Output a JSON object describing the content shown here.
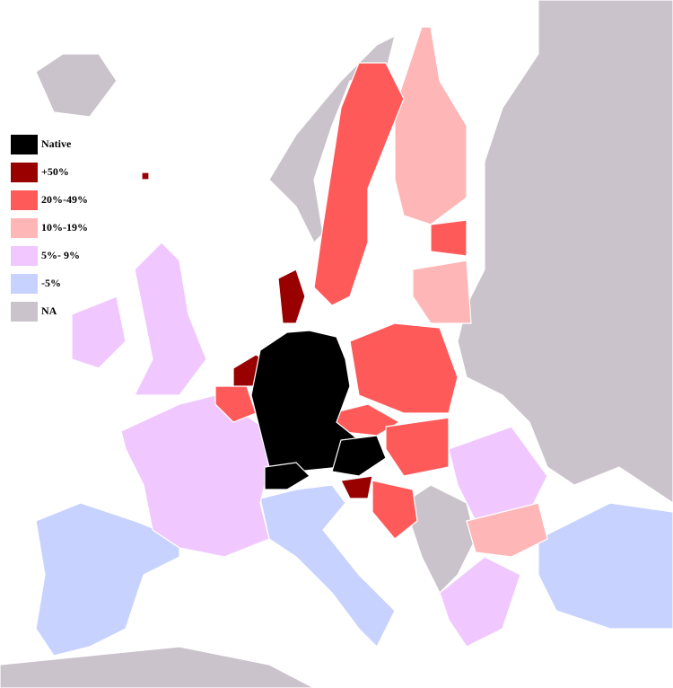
{
  "legend": [
    {
      "label": "Native",
      "color": "#000000"
    },
    {
      "label": "+50%",
      "color": "#990000"
    },
    {
      "label": "20%-49%",
      "color": "#ff5a5a"
    },
    {
      "label": "10%-19%",
      "color": "#ffb6b6"
    },
    {
      "label": "5%- 9%",
      "color": "#f0c8ff"
    },
    {
      "label": "-5%",
      "color": "#c8d2ff"
    },
    {
      "label": "NA",
      "color": "#cbc3cb"
    }
  ]
}
